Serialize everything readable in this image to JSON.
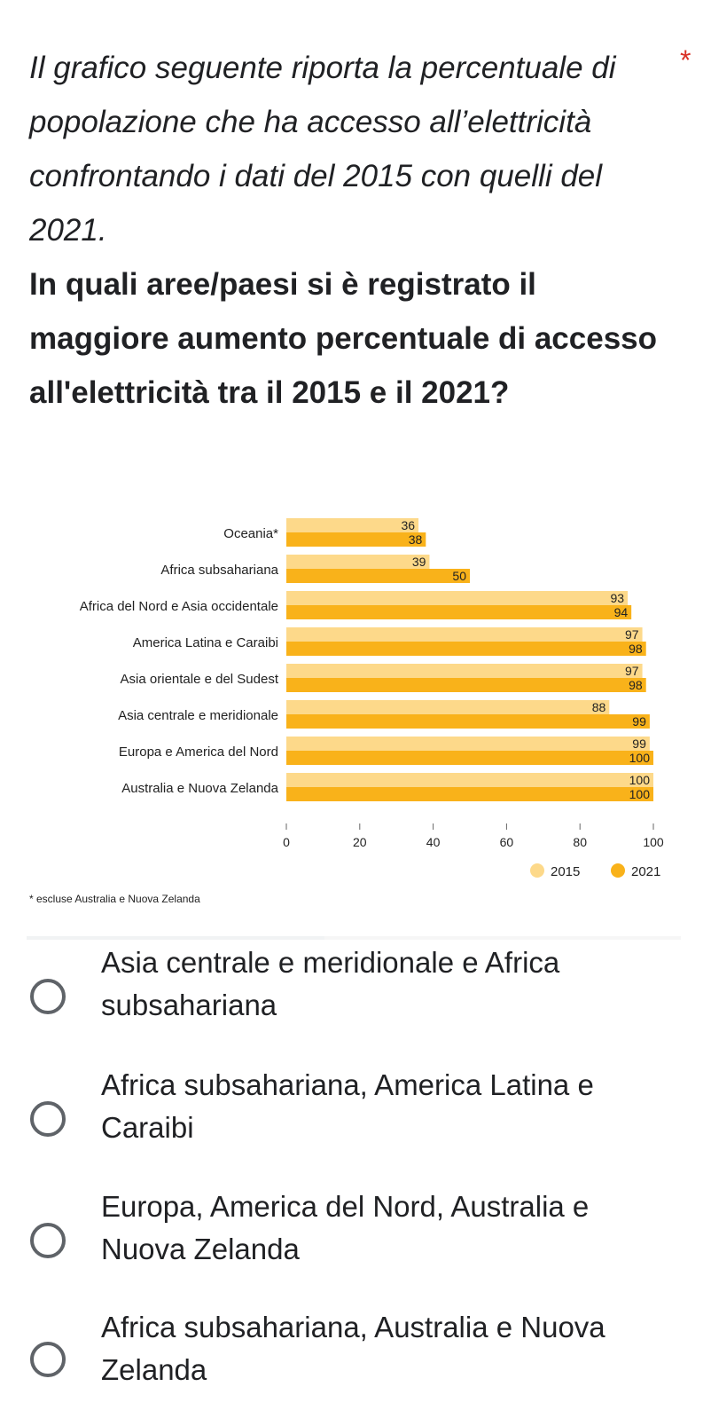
{
  "question": {
    "intro": "Il grafico seguente riporta la percentuale di popolazione che ha accesso all’elettricità confrontando i dati del 2015 con quelli del 2021.",
    "main": "In quali aree/paesi si è registrato il maggiore aumento percentuale di accesso all'elettricità tra il 2015 e il 2021?",
    "required_mark": "*"
  },
  "colors": {
    "series_2015": "#fdd98a",
    "series_2021": "#f9b21a",
    "required": "#d93025",
    "radio_border": "#5f6368"
  },
  "chart_data": {
    "type": "bar",
    "orientation": "horizontal",
    "categories": [
      "Oceania*",
      "Africa subsahariana",
      "Africa del Nord e Asia occidentale",
      "America Latina e Caraibi",
      "Asia orientale e del Sudest",
      "Asia centrale e meridionale",
      "Europa e America del Nord",
      "Australia e Nuova Zelanda"
    ],
    "series": [
      {
        "name": "2015",
        "values": [
          36,
          39,
          93,
          97,
          97,
          88,
          99,
          100
        ]
      },
      {
        "name": "2021",
        "values": [
          38,
          50,
          94,
          98,
          98,
          99,
          100,
          100
        ]
      }
    ],
    "x_ticks": [
      "0",
      "20",
      "40",
      "60",
      "80",
      "100"
    ],
    "xlim": [
      0,
      100
    ],
    "grid": false,
    "legend_position": "bottom-right",
    "footnote": "* escluse Australia e Nuova Zelanda"
  },
  "options": [
    {
      "label": "Asia centrale e meridionale e Africa subsahariana"
    },
    {
      "label": "Africa subsahariana, America Latina e Caraibi"
    },
    {
      "label": "Europa, America del Nord, Australia e Nuova Zelanda"
    },
    {
      "label": "Africa subsahariana, Australia e Nuova Zelanda"
    }
  ]
}
